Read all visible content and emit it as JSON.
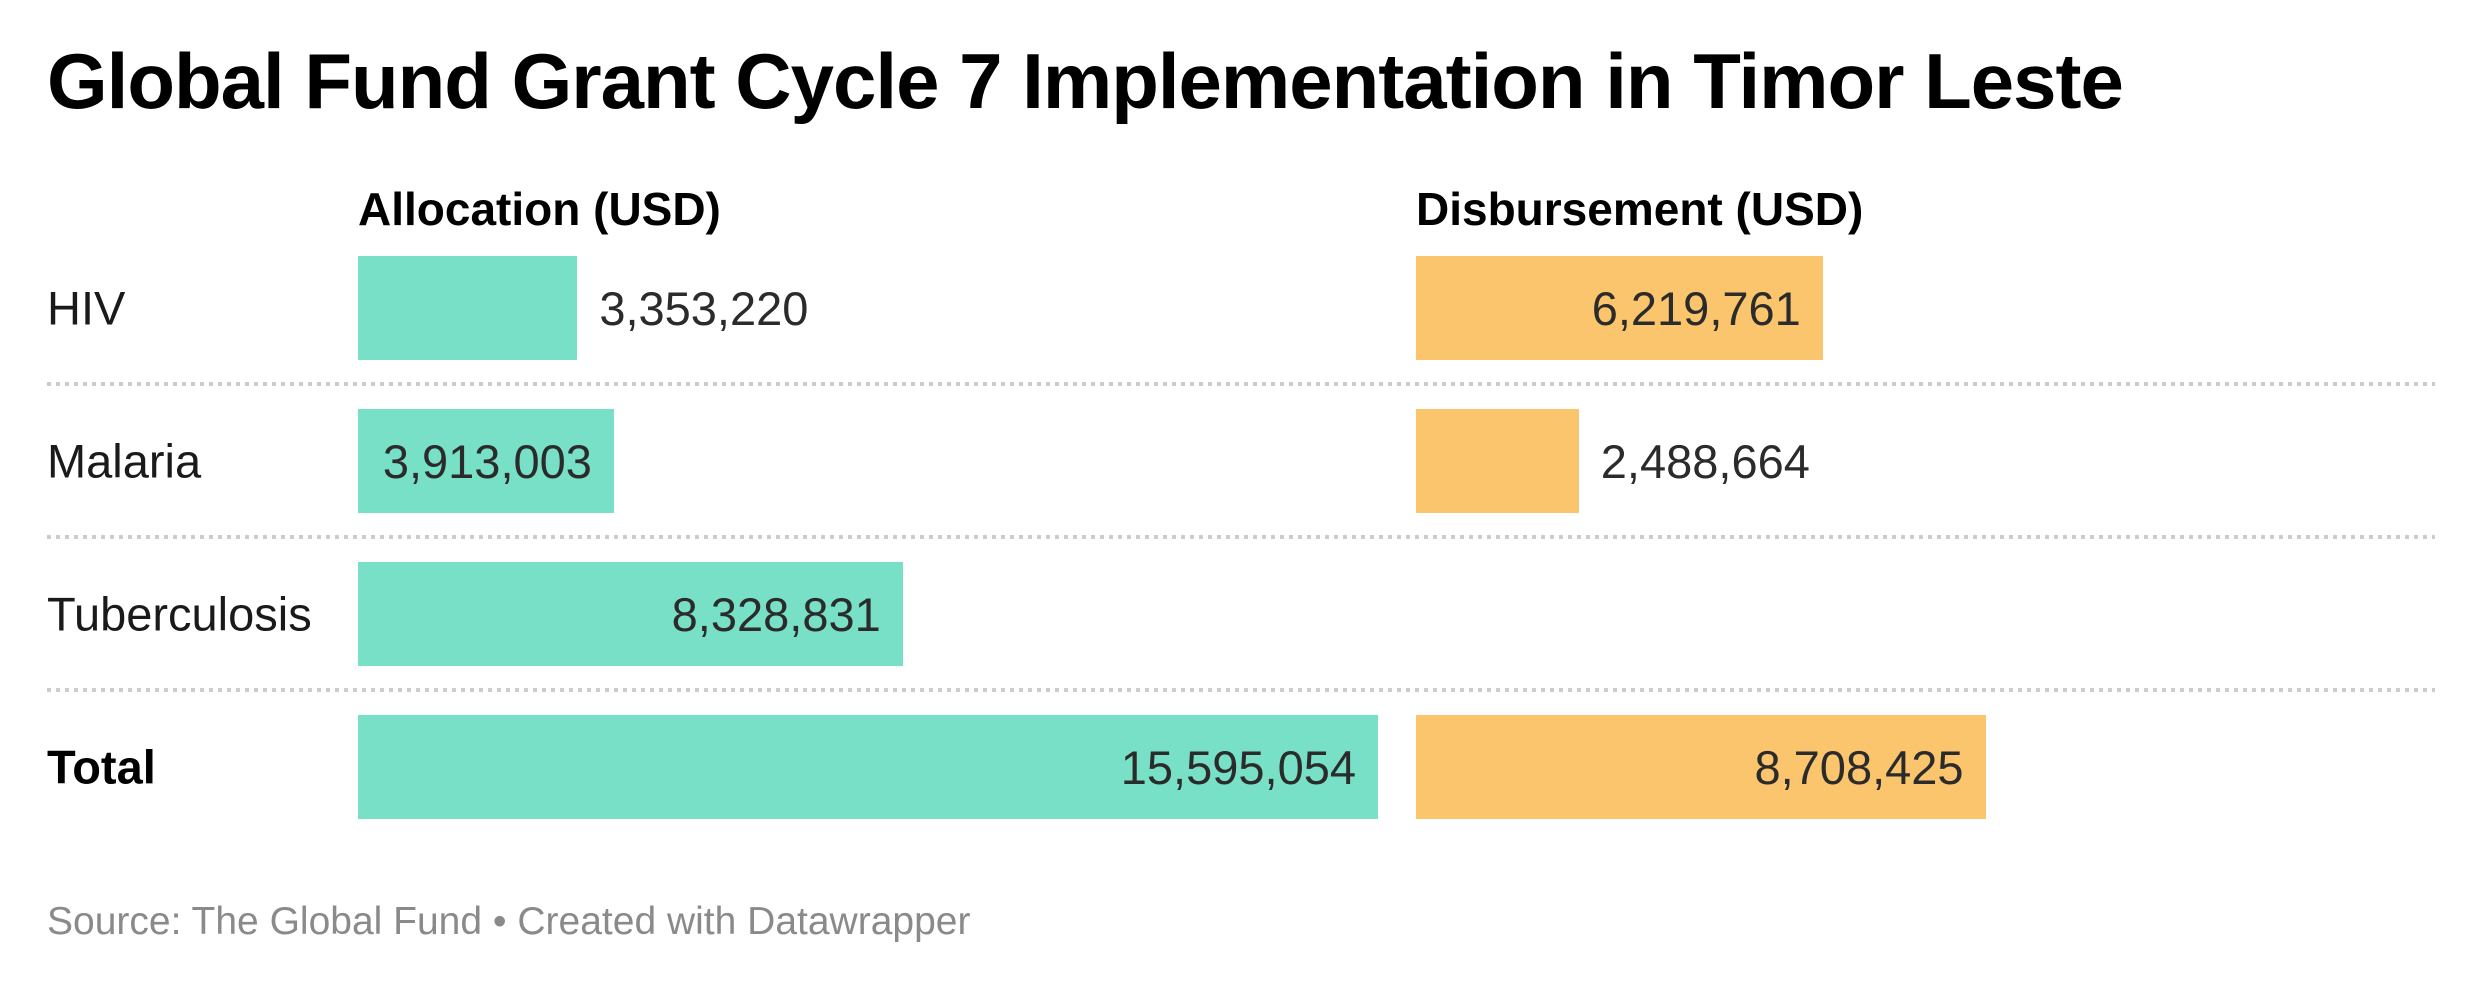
{
  "header": {
    "title": "Global Fund Grant Cycle 7 Implementation in Timor Leste"
  },
  "footer": {
    "prefix": "Source: ",
    "source_name": "The Global Fund",
    "separator": " • ",
    "attribution": "Created with Datawrapper"
  },
  "colors": {
    "allocation_bar": "#78e0c7",
    "disbursement_bar": "#fac56c",
    "separator": "#cccccc",
    "value_text": "#2b2b2b",
    "source_text": "#8a8a8a"
  },
  "chart_data": {
    "type": "bar",
    "orientation": "horizontal",
    "unit": "USD",
    "title": "Global Fund Grant Cycle 7 Implementation in Timor Leste",
    "columns": [
      "Allocation (USD)",
      "Disbursement (USD)"
    ],
    "scale_max_value": 15595054,
    "grid": false,
    "legend": "none",
    "categories": [
      "HIV",
      "Malaria",
      "Tuberculosis",
      "Total"
    ],
    "series": [
      {
        "name": "Allocation (USD)",
        "values": [
          3353220,
          3913003,
          8328831,
          15595054
        ]
      },
      {
        "name": "Disbursement (USD)",
        "values": [
          6219761,
          2488664,
          0,
          8708425
        ]
      }
    ],
    "rows": [
      {
        "label": "HIV",
        "allocation_usd": 3353220,
        "allocation_label": "3,353,220",
        "allocation_label_inside": false,
        "disbursement_usd": 6219761,
        "disbursement_label": "6,219,761",
        "disbursement_label_inside": true
      },
      {
        "label": "Malaria",
        "allocation_usd": 3913003,
        "allocation_label": "3,913,003",
        "allocation_label_inside": true,
        "disbursement_usd": 2488664,
        "disbursement_label": "2,488,664",
        "disbursement_label_inside": false
      },
      {
        "label": "Tuberculosis",
        "allocation_usd": 8328831,
        "allocation_label": "8,328,831",
        "allocation_label_inside": true,
        "disbursement_usd": 0,
        "disbursement_label": "",
        "disbursement_label_inside": false
      },
      {
        "label": "Total",
        "allocation_usd": 15595054,
        "allocation_label": "15,595,054",
        "allocation_label_inside": true,
        "disbursement_usd": 8708425,
        "disbursement_label": "8,708,425",
        "disbursement_label_inside": true
      }
    ]
  }
}
